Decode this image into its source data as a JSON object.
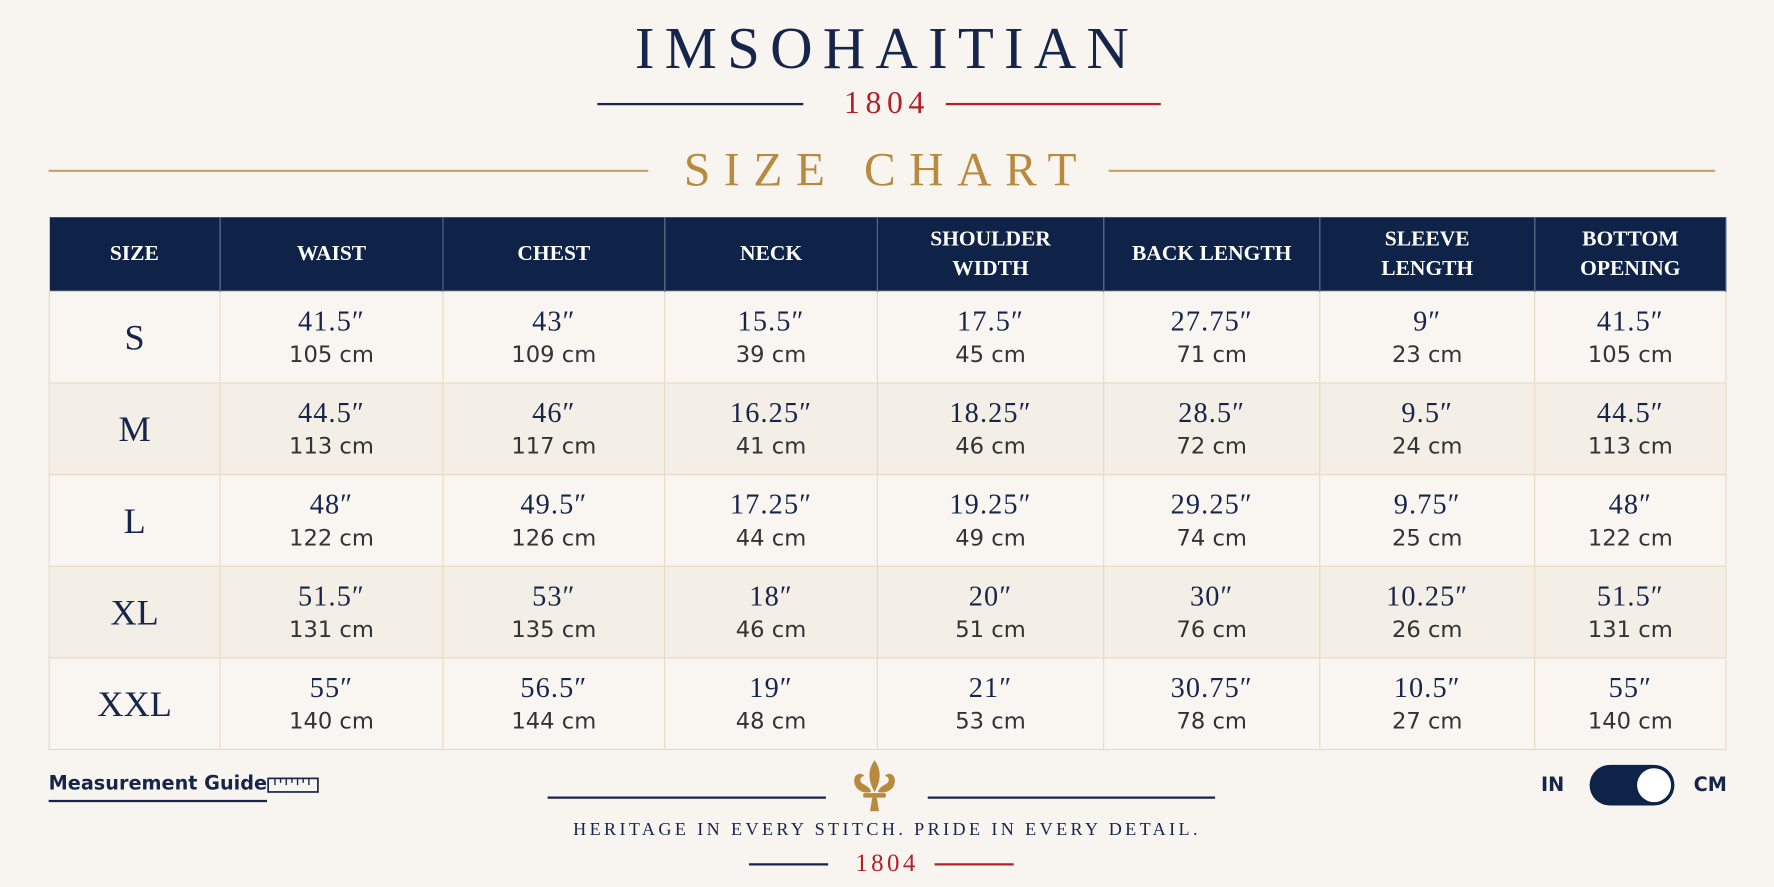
{
  "header": {
    "brand": "IMSOHAITIAN",
    "year": "1804",
    "title": "SIZE CHART"
  },
  "table": {
    "columns": [
      "SIZE",
      "WAIST",
      "CHEST",
      "NECK",
      "SHOULDER WIDTH",
      "BACK LENGTH",
      "SLEEVE LENGTH",
      "BOTTOM OPENING"
    ],
    "rows": [
      {
        "size": "S",
        "cells": [
          [
            "41.5″",
            "105 cm"
          ],
          [
            "43″",
            "109 cm"
          ],
          [
            "15.5″",
            "39 cm"
          ],
          [
            "17.5″",
            "45 cm"
          ],
          [
            "27.75″",
            "71 cm"
          ],
          [
            "9″",
            "23 cm"
          ],
          [
            "41.5″",
            "105 cm"
          ]
        ]
      },
      {
        "size": "M",
        "cells": [
          [
            "44.5″",
            "113 cm"
          ],
          [
            "46″",
            "117 cm"
          ],
          [
            "16.25″",
            "41 cm"
          ],
          [
            "18.25″",
            "46 cm"
          ],
          [
            "28.5″",
            "72 cm"
          ],
          [
            "9.5″",
            "24 cm"
          ],
          [
            "44.5″",
            "113 cm"
          ]
        ]
      },
      {
        "size": "L",
        "cells": [
          [
            "48″",
            "122 cm"
          ],
          [
            "49.5″",
            "126 cm"
          ],
          [
            "17.25″",
            "44 cm"
          ],
          [
            "19.25″",
            "49 cm"
          ],
          [
            "29.25″",
            "74 cm"
          ],
          [
            "9.75″",
            "25 cm"
          ],
          [
            "48″",
            "122 cm"
          ]
        ]
      },
      {
        "size": "XL",
        "cells": [
          [
            "51.5″",
            "131 cm"
          ],
          [
            "53″",
            "135 cm"
          ],
          [
            "18″",
            "46 cm"
          ],
          [
            "20″",
            "51 cm"
          ],
          [
            "30″",
            "76 cm"
          ],
          [
            "10.25″",
            "26 cm"
          ],
          [
            "51.5″",
            "131 cm"
          ]
        ]
      },
      {
        "size": "XXL",
        "cells": [
          [
            "55″",
            "140 cm"
          ],
          [
            "56.5″",
            "144 cm"
          ],
          [
            "19″",
            "48 cm"
          ],
          [
            "21″",
            "53 cm"
          ],
          [
            "30.75″",
            "78 cm"
          ],
          [
            "10.5″",
            "27 cm"
          ],
          [
            "55″",
            "140 cm"
          ]
        ]
      }
    ]
  },
  "footer": {
    "measurement_guide": "Measurement Guide",
    "unit_in": "IN",
    "unit_cm": "CM",
    "tagline": "HERITAGE IN EVERY STITCH. PRIDE IN EVERY DETAIL.",
    "year": "1804"
  }
}
